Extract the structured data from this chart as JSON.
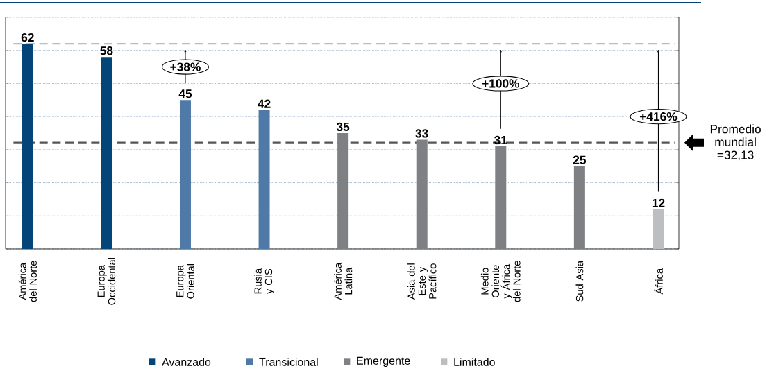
{
  "chart_data": {
    "type": "bar",
    "categories": [
      "América del Norte",
      "Europa Occidental",
      "Europa Oriental",
      "Rusia y CIS",
      "América Latina",
      "Asia del Este y Pacífico",
      "Medio Oriente y África del Norte",
      "Sud Asia",
      "África"
    ],
    "series": [
      {
        "name": "Avanzado",
        "color": "#034479",
        "values": [
          62,
          58,
          null,
          null,
          null,
          null,
          null,
          null,
          null
        ]
      },
      {
        "name": "Transicional",
        "color": "#4f7aa8",
        "values": [
          null,
          null,
          45,
          42,
          null,
          null,
          null,
          null,
          null
        ]
      },
      {
        "name": "Emergente",
        "color": "#7f8084",
        "values": [
          null,
          null,
          null,
          null,
          35,
          33,
          31,
          25,
          null
        ]
      },
      {
        "name": "Limitado",
        "color": "#bcbec1",
        "values": [
          null,
          null,
          null,
          null,
          null,
          null,
          null,
          null,
          12
        ]
      }
    ],
    "ylim": [
      0,
      70
    ],
    "yticks": [
      {
        "value": 0,
        "label": null
      },
      {
        "value": 10,
        "label": null
      },
      {
        "value": 20,
        "label": null
      },
      {
        "value": 30,
        "label": null
      },
      {
        "value": 40,
        "label": null
      },
      {
        "value": 50,
        "label": null
      },
      {
        "value": 60,
        "label": null
      },
      {
        "value": 70,
        "label": null
      }
    ],
    "tick_labels": "x",
    "grid": "y",
    "data_labels": true,
    "legend": "bottom",
    "ref_lines": [
      {
        "axis": "y",
        "value": 62,
        "color": "#bdbdbd",
        "line_style": "dashed"
      },
      {
        "axis": "y",
        "value": 32.13,
        "label": "Promedio mundial =32,13",
        "color": "#555555",
        "line_style": "dashed"
      }
    ],
    "annotations": [
      "+38%",
      "+100%",
      "+416%"
    ]
  }
}
